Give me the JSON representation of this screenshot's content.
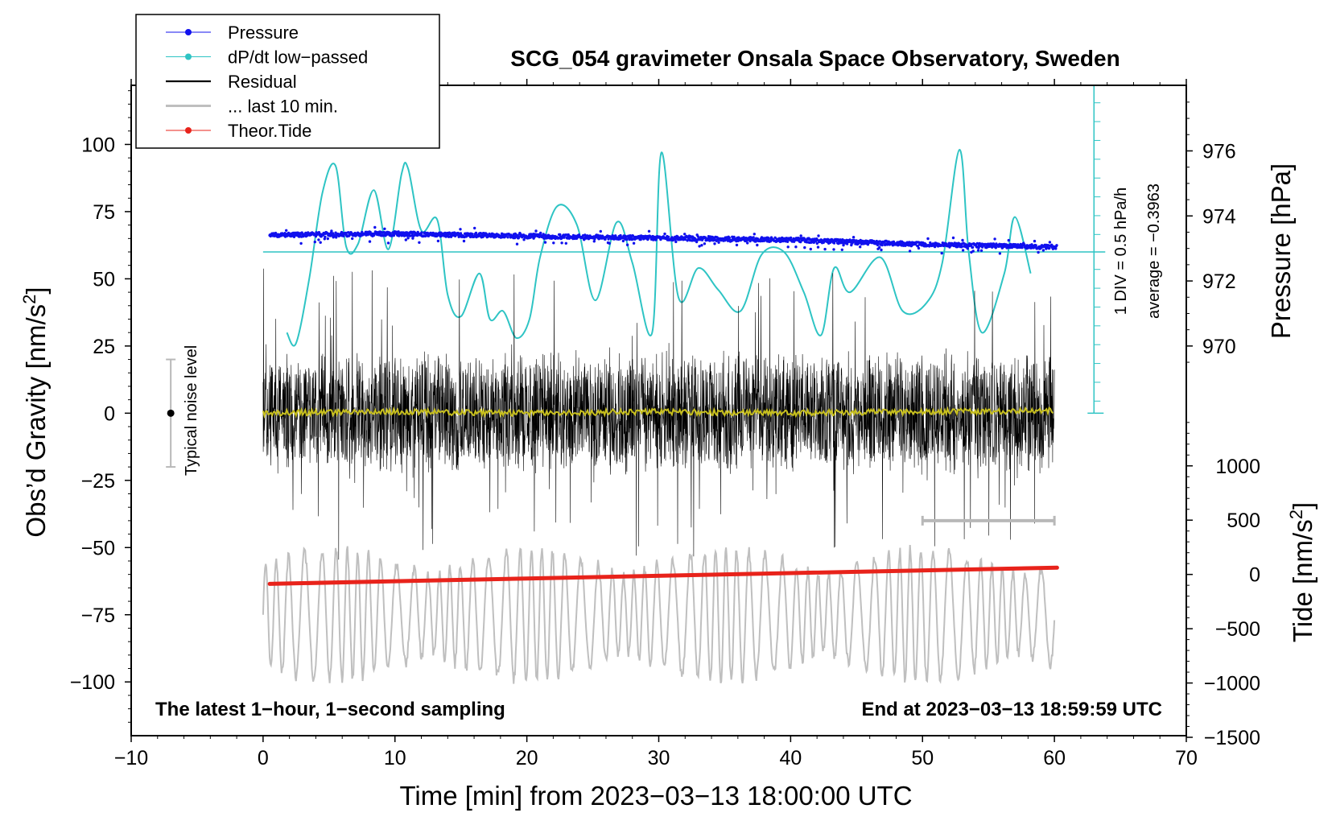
{
  "chart_data": {
    "type": "line",
    "title": "SCG_054 gravimeter Onsala Space Observatory, Sweden",
    "xlabel": "Time [min] from 2023−03−13 18:00:00 UTC",
    "ylabel_left": "Obs’d Gravity [nm/s²]",
    "ylabel_left_main": "Obs’d Gravity [nm/s",
    "ylabel_left_sup": "2",
    "ylabel_left_end": "]",
    "ylabel_right_pressure": "Pressure [hPa]",
    "ylabel_right_tide": "Tide [nm/s²]",
    "ylabel_right_tide_main": "Tide [nm/s",
    "ylabel_right_tide_sup": "2",
    "ylabel_right_tide_end": "]",
    "xlim": [
      -10,
      70
    ],
    "ylim": [
      -120,
      122
    ],
    "x_ticks": [
      -10,
      0,
      10,
      20,
      30,
      40,
      50,
      60,
      70
    ],
    "x_tick_labels": [
      "−10",
      "0",
      "10",
      "20",
      "30",
      "40",
      "50",
      "60",
      "70"
    ],
    "y_ticks": [
      100,
      75,
      50,
      25,
      0,
      -25,
      -50,
      -75,
      -100
    ],
    "y_tick_labels": [
      "100",
      "75",
      "50",
      "25",
      "0",
      "−25",
      "−50",
      "−75",
      "−100"
    ],
    "pressure_axis": {
      "ticks": [
        976,
        974,
        972,
        970
      ],
      "tick_labels": [
        "976",
        "974",
        "972",
        "970"
      ],
      "gravity_at_970": 25,
      "gravity_per_hpa": 12.1
    },
    "tide_axis": {
      "ticks": [
        1000,
        500,
        0,
        -500,
        -1000,
        -1500
      ],
      "tick_labels": [
        "1000",
        "500",
        "0",
        "−500",
        "−1000",
        "−1500"
      ],
      "gravity_at_zero": -60,
      "gravity_per_500": 20.2
    },
    "annotations": {
      "bottom_left": "The latest 1−hour, 1−second sampling",
      "bottom_right": "End at 2023−03−13 18:59:59 UTC",
      "noise_label": "Typical noise level",
      "div_label": "1 DIV = 0.5 hPa/h",
      "average_label": "average = −0.3963"
    },
    "noise_bar": {
      "x": -7,
      "center": 0,
      "low": -20,
      "high": 20
    },
    "last10_bar": {
      "x_start": 50,
      "x_end": 60,
      "y": -40
    },
    "dpdt_scale": {
      "x": 63,
      "y_top": 122,
      "y_bottom": 0,
      "zero_level": 60,
      "div_ticks": [
        115.5,
        108.5,
        101.5,
        94.5,
        87.5,
        80.5,
        73.5,
        66.5,
        53.5,
        46.5,
        39.5,
        32.5,
        25.5,
        18.5,
        11.5,
        4.5
      ]
    },
    "legend": [
      {
        "name": "Pressure",
        "color": "#1010ee",
        "marker": "dot"
      },
      {
        "name": "dP/dt low−passed",
        "color": "#2ec4c4",
        "marker": "dot"
      },
      {
        "name": "Residual",
        "color": "#000000",
        "marker": "line"
      },
      {
        "name": "... last 10 min.",
        "color": "#bfbfbf",
        "marker": "thickline"
      },
      {
        "name": "Theor.Tide",
        "color": "#e8231b",
        "marker": "dot"
      }
    ],
    "series": {
      "pressure": {
        "name": "Pressure",
        "color": "#1010ee",
        "x": [
          0.5,
          10,
          20,
          30,
          40,
          50,
          60.2
        ],
        "y": [
          66.3,
          66.8,
          65.9,
          65.2,
          64.5,
          62.8,
          61.8
        ]
      },
      "dpdt": {
        "name": "dP/dt low−passed",
        "color": "#2ec4c4",
        "zero_level": 60,
        "x": [
          1.8,
          2.5,
          3.5,
          4.5,
          5.5,
          6.3,
          7.2,
          8.4,
          9.5,
          10.5,
          11.0,
          12.0,
          13.2,
          14.0,
          15.0,
          16.4,
          17.2,
          18.2,
          19.2,
          20.2,
          21.0,
          22.3,
          23.8,
          25.2,
          26.8,
          28.0,
          29.5,
          30.2,
          31.5,
          33.0,
          34.5,
          36.2,
          37.8,
          39.5,
          41.0,
          42.3,
          43.3,
          44.5,
          46.8,
          48.5,
          50.3,
          51.5,
          52.8,
          53.5,
          54.5,
          56.2,
          57.0,
          58.2
        ],
        "y": [
          30,
          26,
          50,
          82,
          92,
          62,
          63,
          83,
          61,
          89,
          91,
          68,
          72,
          44,
          36,
          52,
          35,
          38,
          28,
          35,
          58,
          77,
          70,
          42,
          71,
          56,
          30,
          97,
          43,
          54,
          46,
          38,
          59,
          60,
          45,
          29,
          54,
          45,
          58,
          38,
          41,
          56,
          98,
          60,
          30,
          52,
          73,
          52
        ]
      },
      "residual": {
        "name": "Residual",
        "color": "#000000",
        "x_start": 0,
        "x_end": 60,
        "band": 24,
        "spike_max": 55
      },
      "residual_smooth": {
        "name": "Residual (smoothed)",
        "color": "#c8c01e",
        "x": [
          0,
          10,
          20,
          30,
          40,
          50,
          60
        ],
        "y": [
          0,
          0.5,
          0,
          0.5,
          0,
          0.5,
          1
        ]
      },
      "last10": {
        "name": "... last 10 min.",
        "color": "#bfbfbf",
        "x_start": 0,
        "x_end": 60,
        "center": -75,
        "amplitude": 22
      },
      "tide": {
        "name": "Theor.Tide",
        "color": "#e8231b",
        "x": [
          0.5,
          20,
          40,
          60.2
        ],
        "y": [
          -63.5,
          -61.5,
          -59.5,
          -57.5
        ]
      }
    }
  }
}
